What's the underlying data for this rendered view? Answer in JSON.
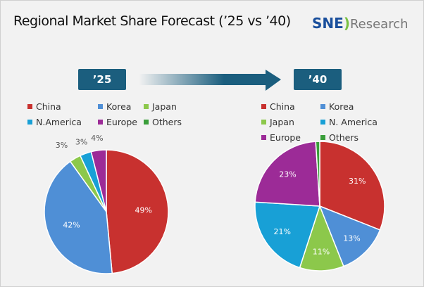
{
  "title": "Regional Market Share Forecast (’25 vs ’40)",
  "logo": {
    "sne": "SNE",
    "paren": ")",
    "research": "Research"
  },
  "chart_data": [
    {
      "type": "pie",
      "label": "’25",
      "legend": [
        "China",
        "Korea",
        "Japan",
        "N.America",
        "Europe",
        "Others"
      ],
      "slices": [
        {
          "name": "China",
          "value": 49,
          "label": "49%",
          "color": "#c8312f"
        },
        {
          "name": "Korea",
          "value": 42,
          "label": "42%",
          "color": "#4f8fd6"
        },
        {
          "name": "Japan",
          "value": 3,
          "label": "3%",
          "color": "#8cc84b"
        },
        {
          "name": "N.America",
          "value": 3,
          "label": "3%",
          "color": "#18a0d6"
        },
        {
          "name": "Europe",
          "value": 4,
          "label": "4%",
          "color": "#9c2b97"
        },
        {
          "name": "Others",
          "value": 0,
          "label": "",
          "color": "#3a9e3a"
        }
      ]
    },
    {
      "type": "pie",
      "label": "’40",
      "legend": [
        "China",
        "Korea",
        "Japan",
        "N. America",
        "Europe",
        "Others"
      ],
      "slices": [
        {
          "name": "China",
          "value": 31,
          "label": "31%",
          "color": "#c8312f"
        },
        {
          "name": "Korea",
          "value": 13,
          "label": "13%",
          "color": "#4f8fd6"
        },
        {
          "name": "Japan",
          "value": 11,
          "label": "11%",
          "color": "#8cc84b"
        },
        {
          "name": "N. America",
          "value": 21,
          "label": "21%",
          "color": "#18a0d6"
        },
        {
          "name": "Europe",
          "value": 23,
          "label": "23%",
          "color": "#9c2b97"
        },
        {
          "name": "Others",
          "value": 1,
          "label": "",
          "color": "#3a9e3a"
        }
      ]
    }
  ]
}
